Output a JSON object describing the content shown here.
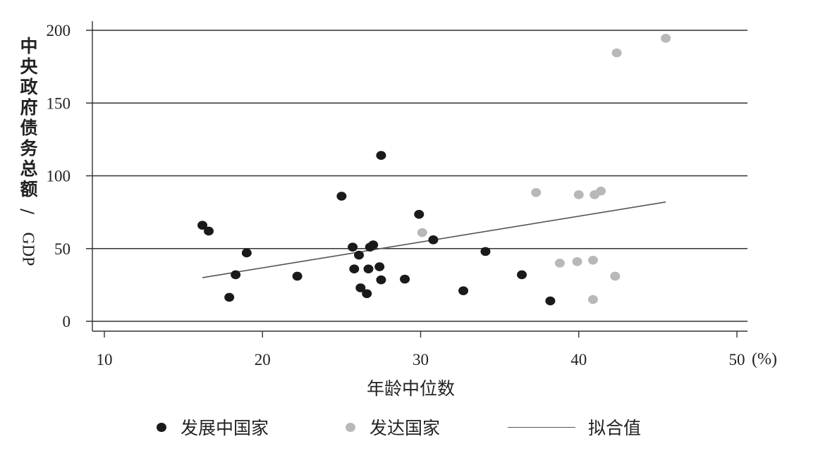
{
  "chart_data": {
    "type": "scatter",
    "xlabel": "年龄中位数",
    "xunit": "(%)",
    "ylabel_main": "中央政府债务总额",
    "ylabel_sep": "/",
    "ylabel_unit": "GDP",
    "xlim": [
      10,
      50
    ],
    "ylim": [
      0,
      200
    ],
    "xticks": [
      "10",
      "20",
      "30",
      "40",
      "50"
    ],
    "yticks": [
      "0",
      "50",
      "100",
      "150",
      "200"
    ],
    "grid": "horizontal",
    "legend_position": "bottom",
    "series": [
      {
        "name": "发展中国家",
        "color": "#1a1a1a",
        "points": [
          [
            16.2,
            66
          ],
          [
            16.6,
            62
          ],
          [
            17.9,
            16.5
          ],
          [
            18.3,
            32
          ],
          [
            19.0,
            47
          ],
          [
            22.2,
            31
          ],
          [
            25.0,
            86
          ],
          [
            25.7,
            51
          ],
          [
            25.8,
            36
          ],
          [
            26.1,
            45.5
          ],
          [
            26.2,
            23
          ],
          [
            26.6,
            19
          ],
          [
            26.7,
            36
          ],
          [
            26.8,
            51
          ],
          [
            27.0,
            52.5
          ],
          [
            27.4,
            37.5
          ],
          [
            27.5,
            28.5
          ],
          [
            27.5,
            114
          ],
          [
            29.0,
            29
          ],
          [
            29.9,
            73.5
          ],
          [
            30.8,
            56
          ],
          [
            32.7,
            21
          ],
          [
            34.1,
            48
          ],
          [
            36.4,
            32
          ],
          [
            38.2,
            14
          ]
        ]
      },
      {
        "name": "发达国家",
        "color": "#b8b8b8",
        "points": [
          [
            30.1,
            61
          ],
          [
            37.3,
            88.5
          ],
          [
            38.8,
            40
          ],
          [
            39.9,
            41
          ],
          [
            40.0,
            87
          ],
          [
            40.9,
            42
          ],
          [
            40.9,
            15
          ],
          [
            41.0,
            87
          ],
          [
            41.4,
            89.5
          ],
          [
            42.3,
            31
          ],
          [
            42.4,
            184.5
          ],
          [
            45.5,
            194.5
          ]
        ]
      }
    ],
    "fit_line": {
      "name": "拟合值",
      "color": "#555555",
      "x": [
        16.2,
        45.5
      ],
      "y": [
        30,
        82
      ]
    }
  }
}
